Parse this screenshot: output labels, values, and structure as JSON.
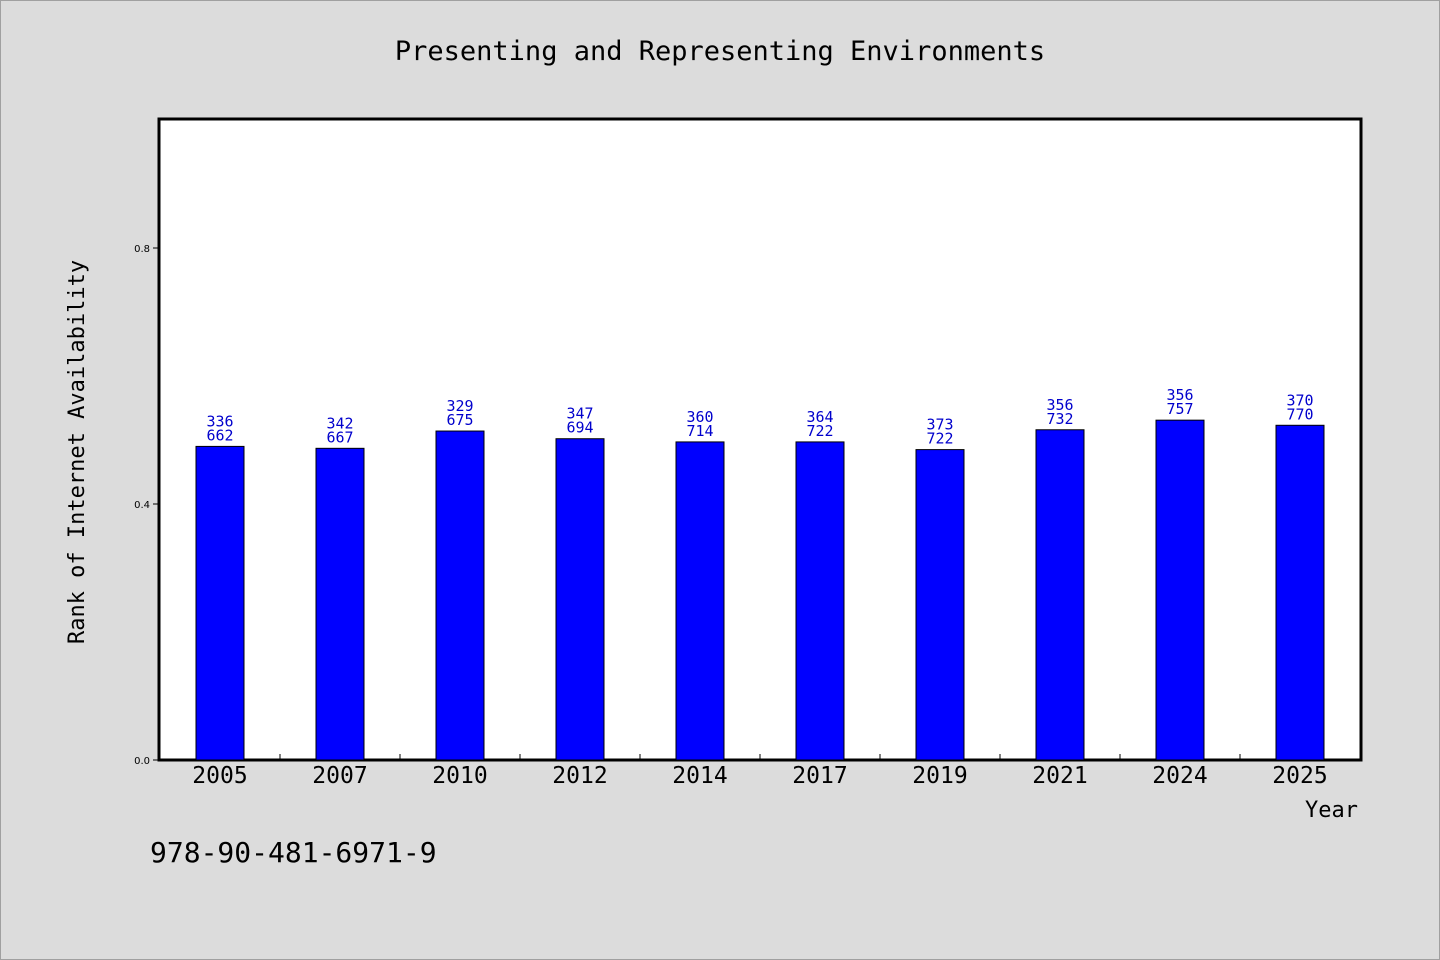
{
  "chart_data": {
    "type": "bar",
    "title": "Presenting and Representing Environments",
    "xlabel": "Year",
    "ylabel": "Rank of Internet Availability",
    "categories": [
      "2005",
      "2007",
      "2010",
      "2012",
      "2014",
      "2017",
      "2019",
      "2021",
      "2024",
      "2025"
    ],
    "values": [
      0.49,
      0.487,
      0.514,
      0.502,
      0.497,
      0.497,
      0.485,
      0.516,
      0.531,
      0.523
    ],
    "data_labels": [
      [
        "336",
        "662"
      ],
      [
        "342",
        "667"
      ],
      [
        "329",
        "675"
      ],
      [
        "347",
        "694"
      ],
      [
        "360",
        "714"
      ],
      [
        "364",
        "722"
      ],
      [
        "373",
        "722"
      ],
      [
        "356",
        "732"
      ],
      [
        "356",
        "757"
      ],
      [
        "370",
        "770"
      ]
    ],
    "yticks": [
      "0.0",
      "0.4",
      "0.8"
    ],
    "ylim": [
      0,
      1.0
    ],
    "grid": false,
    "bar_color": "#0000ff",
    "label_color": "#0000cc"
  },
  "footnote": "978-90-481-6971-9"
}
